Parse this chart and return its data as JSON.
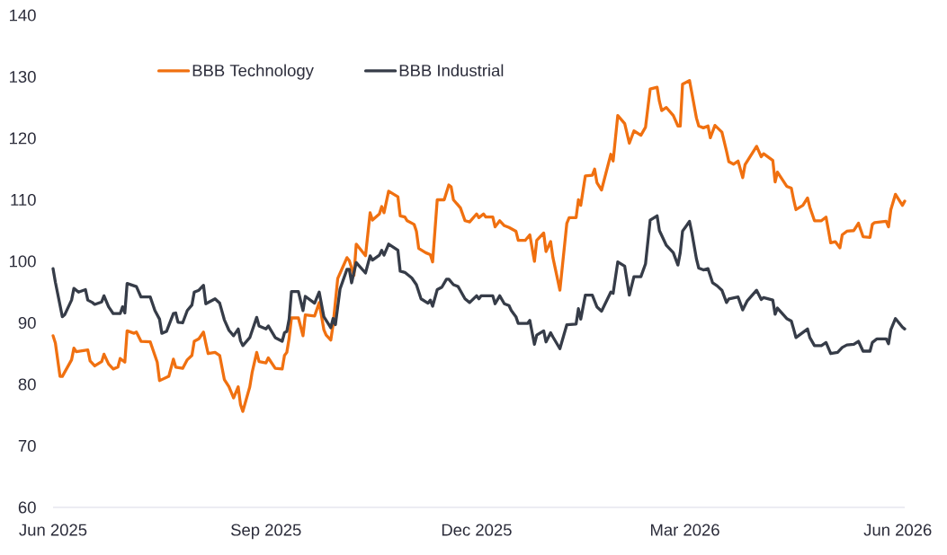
{
  "chart_data": {
    "type": "line",
    "xlim": [
      "2025-06-01",
      "2026-06-04"
    ],
    "xticks": [
      {
        "value": "2025-06-01",
        "label": "Jun 2025"
      },
      {
        "value": "2025-09-01",
        "label": "Sep 2025"
      },
      {
        "value": "2025-12-01",
        "label": "Dec 2025"
      },
      {
        "value": "2026-03-01",
        "label": "Mar 2026"
      },
      {
        "value": "2026-06-01",
        "label": "Jun 2026"
      }
    ],
    "ylim": [
      60,
      140
    ],
    "yticks": [
      60,
      70,
      80,
      90,
      100,
      110,
      120,
      130,
      140
    ],
    "legend": "top left",
    "series": [
      {
        "name": "BBB Technology",
        "color": "#f07010",
        "x": [
          "2025-06-01",
          "2025-06-02",
          "2025-06-04",
          "2025-06-05",
          "2025-06-09",
          "2025-06-10",
          "2025-06-11",
          "2025-06-16",
          "2025-06-17",
          "2025-06-19",
          "2025-06-22",
          "2025-06-23",
          "2025-06-25",
          "2025-06-27",
          "2025-06-29",
          "2025-06-30",
          "2025-07-02",
          "2025-07-03",
          "2025-07-06",
          "2025-07-07",
          "2025-07-09",
          "2025-07-13",
          "2025-07-15",
          "2025-07-16",
          "2025-07-17",
          "2025-07-21",
          "2025-07-23",
          "2025-07-24",
          "2025-07-27",
          "2025-07-29",
          "2025-07-31",
          "2025-08-01",
          "2025-08-03",
          "2025-08-05",
          "2025-08-06",
          "2025-08-07",
          "2025-08-10",
          "2025-08-12",
          "2025-08-14",
          "2025-08-16",
          "2025-08-18",
          "2025-08-20",
          "2025-08-21",
          "2025-08-22",
          "2025-08-25",
          "2025-08-26",
          "2025-08-28",
          "2025-08-29",
          "2025-09-01",
          "2025-09-02",
          "2025-09-05",
          "2025-09-08",
          "2025-09-09",
          "2025-09-10",
          "2025-09-11",
          "2025-09-12",
          "2025-09-15",
          "2025-09-17",
          "2025-09-18",
          "2025-09-22",
          "2025-09-24",
          "2025-09-26",
          "2025-09-27",
          "2025-09-29",
          "2025-09-30",
          "2025-10-02",
          "2025-10-04",
          "2025-10-06",
          "2025-10-07",
          "2025-10-09",
          "2025-10-10",
          "2025-10-14",
          "2025-10-16",
          "2025-10-17",
          "2025-10-20",
          "2025-10-21",
          "2025-10-22",
          "2025-10-24",
          "2025-10-28",
          "2025-10-29",
          "2025-10-31",
          "2025-11-01",
          "2025-11-04",
          "2025-11-05",
          "2025-11-06",
          "2025-11-09",
          "2025-11-11",
          "2025-11-12",
          "2025-11-14",
          "2025-11-17",
          "2025-11-19",
          "2025-11-20",
          "2025-11-21",
          "2025-11-24",
          "2025-11-26",
          "2025-11-28",
          "2025-12-01",
          "2025-12-02",
          "2025-12-04",
          "2025-12-05",
          "2025-12-08",
          "2025-12-09",
          "2025-12-11",
          "2025-12-13",
          "2025-12-15",
          "2025-12-18",
          "2025-12-19",
          "2025-12-22",
          "2025-12-24",
          "2025-12-26",
          "2025-12-27",
          "2025-12-30",
          "2025-12-31",
          "2026-01-02",
          "2026-01-03",
          "2026-01-06",
          "2026-01-09",
          "2026-01-10",
          "2026-01-13",
          "2026-01-14",
          "2026-01-15",
          "2026-01-17",
          "2026-01-20",
          "2026-01-21",
          "2026-01-22",
          "2026-01-24",
          "2026-01-28",
          "2026-01-29",
          "2026-01-31",
          "2026-02-03",
          "2026-02-05",
          "2026-02-07",
          "2026-02-10",
          "2026-02-12",
          "2026-02-14",
          "2026-02-17",
          "2026-02-18",
          "2026-02-19",
          "2026-02-21",
          "2026-02-24",
          "2026-02-26",
          "2026-02-27",
          "2026-02-28",
          "2026-03-03",
          "2026-03-04",
          "2026-03-06",
          "2026-03-07",
          "2026-03-09",
          "2026-03-11",
          "2026-03-12",
          "2026-03-14",
          "2026-03-17",
          "2026-03-19",
          "2026-03-20",
          "2026-03-22",
          "2026-03-24",
          "2026-03-26",
          "2026-03-27",
          "2026-04-01",
          "2026-04-03",
          "2026-04-04",
          "2026-04-08",
          "2026-04-09",
          "2026-04-10",
          "2026-04-14",
          "2026-04-16",
          "2026-04-17",
          "2026-04-18",
          "2026-04-21",
          "2026-04-23",
          "2026-04-24",
          "2026-04-26",
          "2026-04-29",
          "2026-05-01",
          "2026-05-03",
          "2026-05-05",
          "2026-05-07",
          "2026-05-08",
          "2026-05-10",
          "2026-05-13",
          "2026-05-15",
          "2026-05-17",
          "2026-05-20",
          "2026-05-21",
          "2026-05-22",
          "2026-05-27",
          "2026-05-28",
          "2026-05-29",
          "2026-05-31",
          "2026-06-03",
          "2026-06-04"
        ],
        "values": [
          87.9,
          86.7,
          81.3,
          81.3,
          84.0,
          85.9,
          85.3,
          85.6,
          83.8,
          83.0,
          83.7,
          84.9,
          83.3,
          82.5,
          82.8,
          84.2,
          83.6,
          88.7,
          88.3,
          88.5,
          87.0,
          86.9,
          84.7,
          83.6,
          80.6,
          81.3,
          84.1,
          82.8,
          82.6,
          84.0,
          84.7,
          87.0,
          87.4,
          88.5,
          86.7,
          85.0,
          85.2,
          84.7,
          80.8,
          79.6,
          77.8,
          79.6,
          76.7,
          75.6,
          79.6,
          81.9,
          85.2,
          83.7,
          83.5,
          84.3,
          82.6,
          82.5,
          84.7,
          85.2,
          87.5,
          90.8,
          90.8,
          87.9,
          91.3,
          91.1,
          93.3,
          88.9,
          88.0,
          87.2,
          89.7,
          97.2,
          98.9,
          100.6,
          100.1,
          97.7,
          102.8,
          100.9,
          107.9,
          106.7,
          107.7,
          108.9,
          107.9,
          111.4,
          110.5,
          107.4,
          107.2,
          106.6,
          106.0,
          104.9,
          102.1,
          101.4,
          101.1,
          99.9,
          110.0,
          110.0,
          112.4,
          112.1,
          110.0,
          108.7,
          106.6,
          106.4,
          107.7,
          107.1,
          107.7,
          107.2,
          107.2,
          105.6,
          106.6,
          105.8,
          105.5,
          104.9,
          103.4,
          103.4,
          104.3,
          100.0,
          103.4,
          104.6,
          101.6,
          103.2,
          100.6,
          95.3,
          106.2,
          107.1,
          107.1,
          110.0,
          109.1,
          113.9,
          114.0,
          115.0,
          112.8,
          111.6,
          117.4,
          116.3,
          123.7,
          122.4,
          119.2,
          121.2,
          120.5,
          121.8,
          128.0,
          128.3,
          126.0,
          124.5,
          125.0,
          123.7,
          122.0,
          122.0,
          128.8,
          129.4,
          127.4,
          123.3,
          122.0,
          121.7,
          122.0,
          120.1,
          122.1,
          121.0,
          117.9,
          116.2,
          115.8,
          116.3,
          113.6,
          115.7,
          118.7,
          117.0,
          117.5,
          116.4,
          112.9,
          114.5,
          112.2,
          111.9,
          110.0,
          108.4,
          109.1,
          110.3,
          108.8,
          106.6,
          106.6,
          107.2,
          103.0,
          103.2,
          102.2,
          104.3,
          104.9,
          105.0,
          106.2,
          104.0,
          103.9,
          106.0,
          106.3,
          106.5,
          105.6,
          108.4,
          110.9,
          109.1,
          109.8
        ]
      },
      {
        "name": "BBB Industrial",
        "color": "#363c48",
        "x": [
          "2025-06-01",
          "2025-06-02",
          "2025-06-05",
          "2025-06-06",
          "2025-06-09",
          "2025-06-10",
          "2025-06-12",
          "2025-06-15",
          "2025-06-16",
          "2025-06-18",
          "2025-06-19",
          "2025-06-22",
          "2025-06-23",
          "2025-06-25",
          "2025-06-27",
          "2025-06-30",
          "2025-07-01",
          "2025-07-02",
          "2025-07-03",
          "2025-07-07",
          "2025-07-09",
          "2025-07-13",
          "2025-07-15",
          "2025-07-17",
          "2025-07-18",
          "2025-07-20",
          "2025-07-23",
          "2025-07-24",
          "2025-07-25",
          "2025-07-27",
          "2025-07-29",
          "2025-07-31",
          "2025-08-01",
          "2025-08-03",
          "2025-08-05",
          "2025-08-06",
          "2025-08-10",
          "2025-08-12",
          "2025-08-14",
          "2025-08-16",
          "2025-08-18",
          "2025-08-20",
          "2025-08-21",
          "2025-08-22",
          "2025-08-25",
          "2025-08-28",
          "2025-08-29",
          "2025-09-01",
          "2025-09-02",
          "2025-09-05",
          "2025-09-08",
          "2025-09-09",
          "2025-09-10",
          "2025-09-11",
          "2025-09-12",
          "2025-09-15",
          "2025-09-17",
          "2025-09-18",
          "2025-09-22",
          "2025-09-24",
          "2025-09-26",
          "2025-09-29",
          "2025-09-30",
          "2025-10-01",
          "2025-10-03",
          "2025-10-06",
          "2025-10-07",
          "2025-10-08",
          "2025-10-10",
          "2025-10-14",
          "2025-10-16",
          "2025-10-17",
          "2025-10-20",
          "2025-10-21",
          "2025-10-22",
          "2025-10-24",
          "2025-10-28",
          "2025-10-29",
          "2025-10-31",
          "2025-11-03",
          "2025-11-05",
          "2025-11-07",
          "2025-11-10",
          "2025-11-11",
          "2025-11-12",
          "2025-11-14",
          "2025-11-16",
          "2025-11-18",
          "2025-11-19",
          "2025-11-21",
          "2025-11-23",
          "2025-11-26",
          "2025-11-28",
          "2025-12-01",
          "2025-12-02",
          "2025-12-03",
          "2025-12-08",
          "2025-12-09",
          "2025-12-11",
          "2025-12-13",
          "2025-12-15",
          "2025-12-16",
          "2025-12-18",
          "2025-12-19",
          "2025-12-23",
          "2025-12-24",
          "2025-12-26",
          "2025-12-27",
          "2025-12-30",
          "2025-12-31",
          "2026-01-02",
          "2026-01-03",
          "2026-01-06",
          "2026-01-09",
          "2026-01-13",
          "2026-01-14",
          "2026-01-15",
          "2026-01-17",
          "2026-01-20",
          "2026-01-22",
          "2026-01-24",
          "2026-01-28",
          "2026-01-29",
          "2026-01-31",
          "2026-02-03",
          "2026-02-05",
          "2026-02-07",
          "2026-02-10",
          "2026-02-12",
          "2026-02-14",
          "2026-02-17",
          "2026-02-18",
          "2026-02-21",
          "2026-02-24",
          "2026-02-26",
          "2026-02-27",
          "2026-02-28",
          "2026-03-03",
          "2026-03-04",
          "2026-03-06",
          "2026-03-07",
          "2026-03-09",
          "2026-03-11",
          "2026-03-13",
          "2026-03-15",
          "2026-03-17",
          "2026-03-19",
          "2026-03-20",
          "2026-03-24",
          "2026-03-26",
          "2026-03-28",
          "2026-04-01",
          "2026-04-03",
          "2026-04-04",
          "2026-04-08",
          "2026-04-09",
          "2026-04-10",
          "2026-04-14",
          "2026-04-16",
          "2026-04-17",
          "2026-04-18",
          "2026-04-23",
          "2026-04-24",
          "2026-04-26",
          "2026-04-29",
          "2026-05-01",
          "2026-05-03",
          "2026-05-06",
          "2026-05-08",
          "2026-05-10",
          "2026-05-13",
          "2026-05-15",
          "2026-05-17",
          "2026-05-20",
          "2026-05-21",
          "2026-05-23",
          "2026-05-27",
          "2026-05-28",
          "2026-05-29",
          "2026-05-31",
          "2026-06-03",
          "2026-06-04"
        ],
        "values": [
          98.8,
          96.6,
          91.0,
          91.3,
          93.7,
          95.6,
          95.0,
          95.4,
          93.7,
          93.3,
          93.0,
          93.4,
          94.4,
          92.6,
          91.5,
          91.5,
          92.6,
          91.6,
          96.4,
          95.9,
          94.2,
          94.2,
          92.0,
          90.6,
          88.3,
          88.6,
          91.5,
          91.6,
          90.1,
          90.0,
          92.0,
          92.9,
          95.0,
          95.3,
          96.1,
          93.1,
          93.9,
          93.2,
          90.5,
          88.8,
          87.9,
          89.0,
          87.1,
          86.3,
          87.6,
          90.9,
          89.5,
          89.0,
          89.5,
          87.6,
          87.0,
          88.4,
          88.6,
          90.6,
          95.1,
          95.1,
          92.0,
          94.3,
          93.2,
          95.0,
          91.0,
          89.2,
          90.7,
          89.7,
          95.5,
          98.7,
          98.7,
          96.5,
          99.8,
          98.1,
          100.9,
          100.2,
          101.0,
          101.8,
          101.0,
          102.8,
          101.8,
          98.4,
          98.2,
          97.3,
          96.2,
          93.9,
          93.2,
          93.7,
          92.7,
          95.4,
          95.8,
          97.1,
          97.1,
          96.2,
          95.9,
          93.9,
          93.3,
          94.4,
          93.9,
          94.4,
          94.4,
          93.1,
          94.4,
          93.1,
          92.8,
          92.0,
          91.0,
          89.9,
          89.9,
          90.4,
          86.5,
          88.0,
          88.7,
          86.9,
          88.4,
          87.7,
          85.8,
          89.7,
          89.8,
          92.3,
          90.6,
          94.5,
          94.5,
          92.6,
          91.9,
          95.0,
          94.8,
          99.9,
          99.2,
          94.5,
          97.5,
          97.5,
          99.6,
          106.7,
          107.4,
          105.0,
          102.6,
          101.4,
          99.4,
          101.4,
          104.9,
          106.5,
          104.7,
          100.4,
          98.9,
          98.6,
          98.8,
          96.5,
          96.0,
          95.3,
          93.3,
          93.9,
          94.2,
          92.1,
          93.6,
          95.3,
          93.8,
          94.1,
          93.7,
          91.4,
          92.4,
          90.7,
          90.3,
          89.0,
          87.6,
          89.0,
          87.6,
          86.3,
          86.3,
          86.8,
          85.0,
          85.2,
          86.0,
          86.4,
          86.5,
          87.0,
          85.4,
          85.4,
          86.8,
          87.4,
          87.4,
          86.6,
          88.9,
          90.7,
          89.3,
          89.0
        ]
      }
    ]
  }
}
